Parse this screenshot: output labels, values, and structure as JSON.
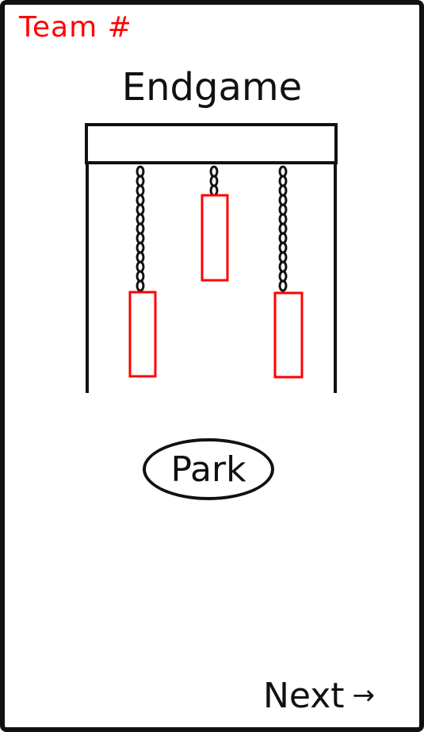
{
  "header": {
    "team_label": "Team #"
  },
  "main": {
    "title": "Endgame",
    "park_label": "Park"
  },
  "footer": {
    "next_label": "Next",
    "next_icon": "arrow-right-icon"
  },
  "colors": {
    "accent_red": "#ff0000",
    "ink": "#111111"
  }
}
